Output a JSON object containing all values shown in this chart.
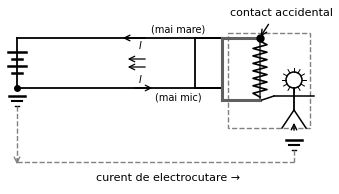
{
  "bg_color": "#ffffff",
  "line_color": "#000000",
  "gray_color": "#606060",
  "dashed_color": "#808080",
  "title_text": "contact accidental",
  "label_mai_mare": "(mai mare)",
  "label_I_top": "I",
  "label_mai_mic": "(mai mic)",
  "label_I_bot": "I",
  "label_bottom": "curent de electrocutare →",
  "fig_width": 3.39,
  "fig_height": 1.94,
  "dpi": 100
}
